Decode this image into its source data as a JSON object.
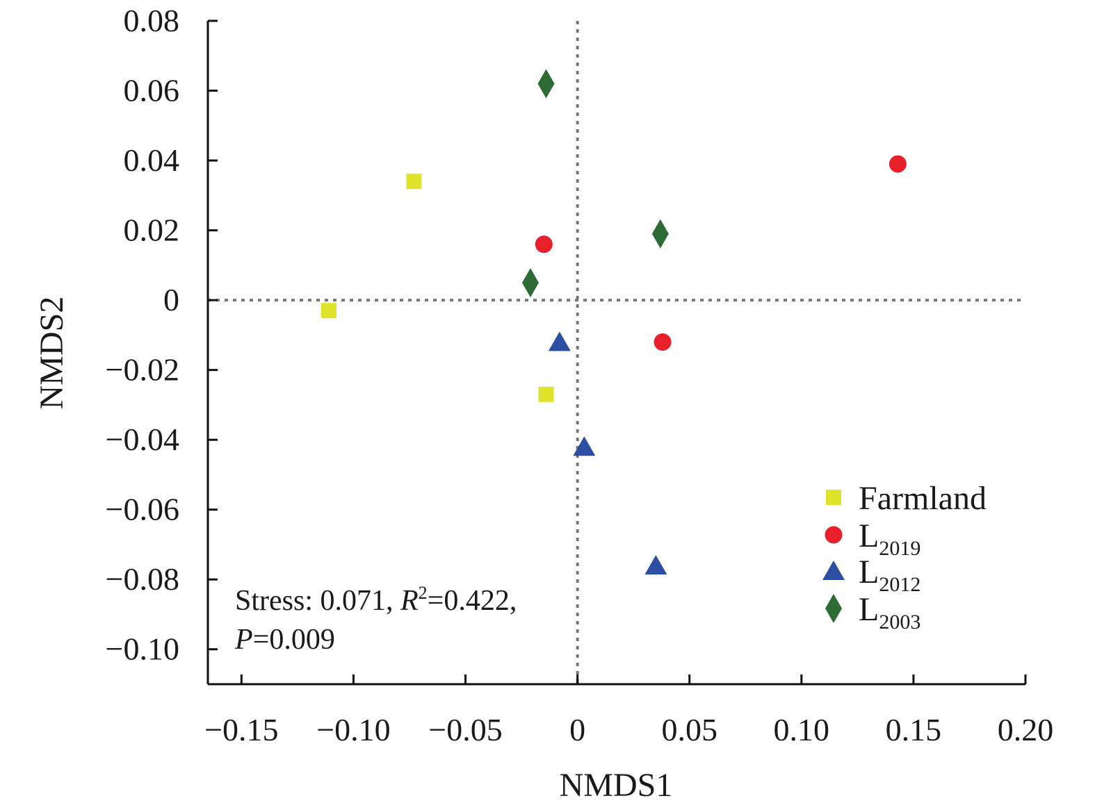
{
  "chart_data": {
    "type": "scatter",
    "xlabel": "NMDS1",
    "ylabel": "NMDS2",
    "xlim": [
      -0.165,
      0.2
    ],
    "ylim": [
      -0.11,
      0.08
    ],
    "x_ticks": [
      {
        "value": -0.15,
        "label": "−0.15"
      },
      {
        "value": -0.1,
        "label": "−0.10"
      },
      {
        "value": -0.05,
        "label": "−0.05"
      },
      {
        "value": 0,
        "label": "0"
      },
      {
        "value": 0.05,
        "label": "0.05"
      },
      {
        "value": 0.1,
        "label": "0.10"
      },
      {
        "value": 0.15,
        "label": "0.15"
      },
      {
        "value": 0.2,
        "label": "0.20"
      }
    ],
    "y_ticks": [
      {
        "value": 0.08,
        "label": "0.08"
      },
      {
        "value": 0.06,
        "label": "0.06"
      },
      {
        "value": 0.04,
        "label": "0.04"
      },
      {
        "value": 0.02,
        "label": "0.02"
      },
      {
        "value": 0,
        "label": "0"
      },
      {
        "value": -0.02,
        "label": "−0.02"
      },
      {
        "value": -0.04,
        "label": "−0.04"
      },
      {
        "value": -0.06,
        "label": "−0.06"
      },
      {
        "value": -0.08,
        "label": "−0.08"
      },
      {
        "value": -0.1,
        "label": "−0.10"
      }
    ],
    "reference_lines": {
      "x": 0,
      "y": 0,
      "style": "dotted"
    },
    "legend_position": "bottom-right",
    "series": [
      {
        "name": "Farmland",
        "label_main": "Farmland",
        "label_sub": "",
        "marker": "square",
        "color": "#dfe32c",
        "points": [
          [
            -0.073,
            0.034
          ],
          [
            -0.111,
            -0.003
          ],
          [
            -0.014,
            -0.027
          ]
        ]
      },
      {
        "name": "L2019",
        "label_main": "L",
        "label_sub": "2019",
        "marker": "circle",
        "color": "#e8202a",
        "points": [
          [
            0.143,
            0.039
          ],
          [
            -0.015,
            0.016
          ],
          [
            0.038,
            -0.012
          ]
        ]
      },
      {
        "name": "L2012",
        "label_main": "L",
        "label_sub": "2012",
        "marker": "triangle",
        "color": "#2c4fa3",
        "points": [
          [
            -0.008,
            -0.012
          ],
          [
            0.003,
            -0.042
          ],
          [
            0.035,
            -0.076
          ]
        ]
      },
      {
        "name": "L2003",
        "label_main": "L",
        "label_sub": "2003",
        "marker": "diamond",
        "color": "#2e6b34",
        "points": [
          [
            -0.014,
            0.062
          ],
          [
            0.037,
            0.019
          ],
          [
            -0.021,
            0.005
          ]
        ]
      }
    ],
    "annotation": {
      "line1": {
        "a": "Stress: 0.071, ",
        "b": "R",
        "c": "2",
        "d": "=0.422,"
      },
      "line2": {
        "a": "P",
        "b": "=0.009"
      }
    }
  }
}
